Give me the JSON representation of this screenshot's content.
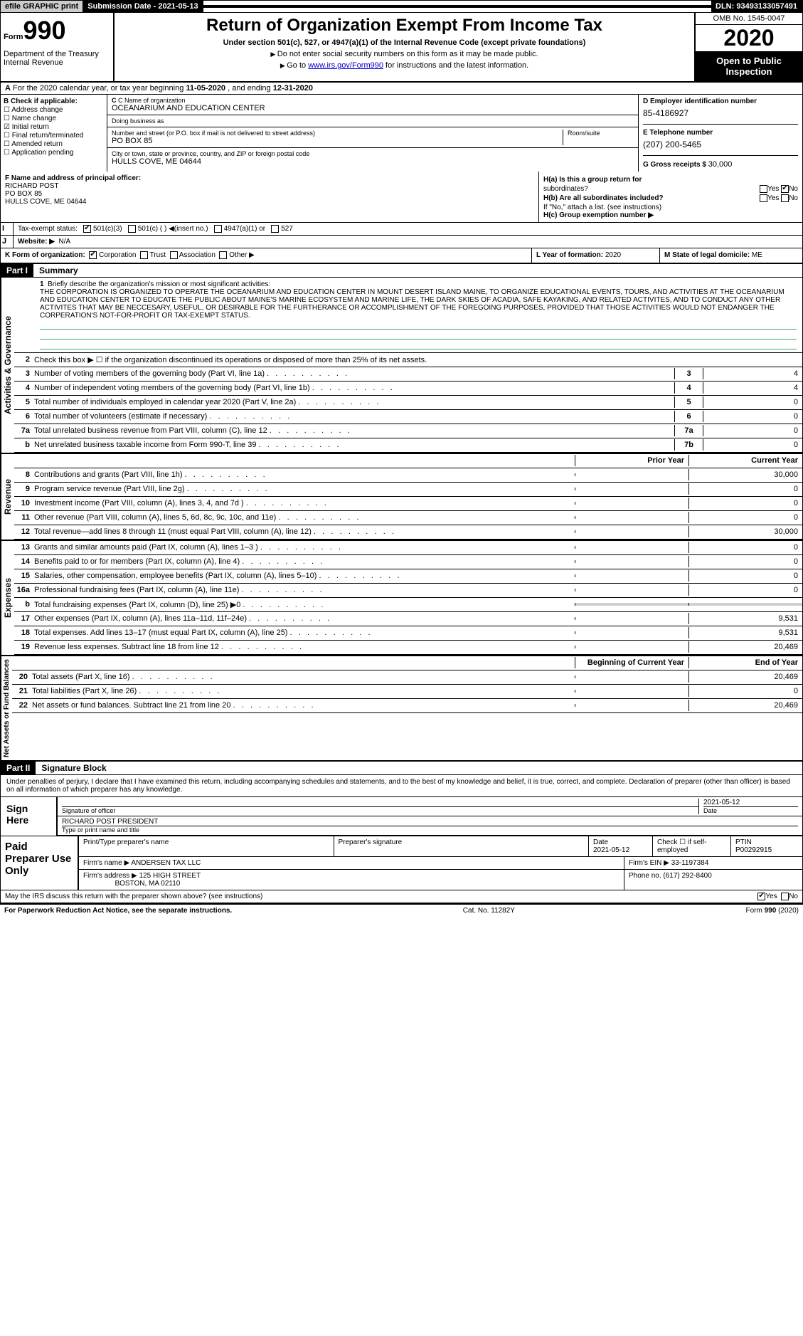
{
  "topbar": {
    "efile": "efile GRAPHIC print",
    "submission_label": "Submission Date - ",
    "submission_date": "2021-05-13",
    "dln_label": "DLN: ",
    "dln": "93493133057491"
  },
  "header": {
    "form_label": "Form",
    "form_number": "990",
    "dept": "Department of the Treasury\nInternal Revenue",
    "title": "Return of Organization Exempt From Income Tax",
    "subtitle": "Under section 501(c), 527, or 4947(a)(1) of the Internal Revenue Code (except private foundations)",
    "note1": "Do not enter social security numbers on this form as it may be made public.",
    "note2_pre": "Go to ",
    "note2_link": "www.irs.gov/Form990",
    "note2_post": " for instructions and the latest information.",
    "omb": "OMB No. 1545-0047",
    "year": "2020",
    "open_public": "Open to Public Inspection"
  },
  "row_a": {
    "prefix": "A",
    "text_pre": "For the 2020 calendar year, or tax year beginning ",
    "begin": "11-05-2020",
    "mid": " , and ending ",
    "end": "12-31-2020"
  },
  "col_b": {
    "label": "B Check if applicable:",
    "items": [
      "Address change",
      "Name change",
      "Initial return",
      "Final return/terminated",
      "Amended return",
      "Application pending"
    ],
    "checked_index": 2
  },
  "col_c": {
    "name_lbl": "C Name of organization",
    "name": "OCEANARIUM AND EDUCATION CENTER",
    "dba_lbl": "Doing business as",
    "dba": "",
    "street_lbl": "Number and street (or P.O. box if mail is not delivered to street address)",
    "room_lbl": "Room/suite",
    "street": "PO BOX 85",
    "city_lbl": "City or town, state or province, country, and ZIP or foreign postal code",
    "city": "HULLS COVE, ME  04644"
  },
  "col_d": {
    "ein_lbl": "D Employer identification number",
    "ein": "85-4186927",
    "phone_lbl": "E Telephone number",
    "phone": "(207) 200-5465",
    "gross_lbl": "G Gross receipts $ ",
    "gross": "30,000"
  },
  "col_f": {
    "lbl": "F  Name and address of principal officer:",
    "name": "RICHARD POST",
    "addr1": "PO BOX 85",
    "addr2": "HULLS COVE, ME  04644"
  },
  "col_h": {
    "ha_lbl": "H(a)  Is this a group return for",
    "ha_lbl2": "subordinates?",
    "ha_yes": "Yes",
    "ha_no": "No",
    "ha_no_checked": true,
    "hb_lbl": "H(b)  Are all subordinates included?",
    "hb_yes": "Yes",
    "hb_no": "No",
    "hb_note": "If \"No,\" attach a list. (see instructions)",
    "hc_lbl": "H(c)  Group exemption number ▶"
  },
  "row_i": {
    "label": "I",
    "text": "Tax-exempt status:",
    "opts": [
      "501(c)(3)",
      "501(c) (  ) ◀(insert no.)",
      "4947(a)(1) or",
      "527"
    ],
    "checked_index": 0
  },
  "row_j": {
    "label": "J",
    "text": "Website: ▶",
    "val": "N/A"
  },
  "row_k": {
    "label": "K Form of organization:",
    "opts": [
      "Corporation",
      "Trust",
      "Association",
      "Other ▶"
    ],
    "checked_index": 0
  },
  "row_l": {
    "label": "L Year of formation: ",
    "val": "2020"
  },
  "row_m": {
    "label": "M State of legal domicile: ",
    "val": "ME"
  },
  "part1": {
    "label": "Part I",
    "title": "Summary",
    "q1_num": "1",
    "q1": "Briefly describe the organization's mission or most significant activities:",
    "mission": "THE CORPORATION IS ORGANIZED TO OPERATE THE OCEANARIUM AND EDUCATION CENTER IN MOUNT DESERT ISLAND MAINE, TO ORGANIZE EDUCATIONAL EVENTS, TOURS, AND ACTIVITIES AT THE OCEANARIUM AND EDUCATION CENTER TO EDUCATE THE PUBLIC ABOUT MAINE'S MARINE ECOSYSTEM AND MARINE LIFE, THE DARK SKIES OF ACADIA, SAFE KAYAKING, AND RELATED ACTIVITES, AND TO CONDUCT ANY OTHER ACTIVITES THAT MAY BE NECCESARY, USEFUL, OR DESIRABLE FOR THE FURTHERANCE OR ACCOMPLISHMENT OF THE FOREGOING PURPOSES, PROVIDED THAT THOSE ACTIVITIES WOULD NOT ENDANGER THE CORPERATION'S NOT-FOR-PROFIT OR TAX-EXEMPT STATUS.",
    "q2": "Check this box ▶ ☐  if the organization discontinued its operations or disposed of more than 25% of its net assets.",
    "vlabel_ag": "Activities & Governance",
    "vlabel_rev": "Revenue",
    "vlabel_exp": "Expenses",
    "vlabel_na": "Net Assets or Fund Balances",
    "lines_ag": [
      {
        "n": "3",
        "t": "Number of voting members of the governing body (Part VI, line 1a)",
        "bn": "3",
        "v": "4"
      },
      {
        "n": "4",
        "t": "Number of independent voting members of the governing body (Part VI, line 1b)",
        "bn": "4",
        "v": "4"
      },
      {
        "n": "5",
        "t": "Total number of individuals employed in calendar year 2020 (Part V, line 2a)",
        "bn": "5",
        "v": "0"
      },
      {
        "n": "6",
        "t": "Total number of volunteers (estimate if necessary)",
        "bn": "6",
        "v": "0"
      },
      {
        "n": "7a",
        "t": "Total unrelated business revenue from Part VIII, column (C), line 12",
        "bn": "7a",
        "v": "0"
      },
      {
        "n": "b",
        "t": "Net unrelated business taxable income from Form 990-T, line 39",
        "bn": "7b",
        "v": "0"
      }
    ],
    "col_prior": "Prior Year",
    "col_current": "Current Year",
    "lines_rev": [
      {
        "n": "8",
        "t": "Contributions and grants (Part VIII, line 1h)",
        "p": "",
        "c": "30,000"
      },
      {
        "n": "9",
        "t": "Program service revenue (Part VIII, line 2g)",
        "p": "",
        "c": "0"
      },
      {
        "n": "10",
        "t": "Investment income (Part VIII, column (A), lines 3, 4, and 7d )",
        "p": "",
        "c": "0"
      },
      {
        "n": "11",
        "t": "Other revenue (Part VIII, column (A), lines 5, 6d, 8c, 9c, 10c, and 11e)",
        "p": "",
        "c": "0"
      },
      {
        "n": "12",
        "t": "Total revenue—add lines 8 through 11 (must equal Part VIII, column (A), line 12)",
        "p": "",
        "c": "30,000"
      }
    ],
    "lines_exp": [
      {
        "n": "13",
        "t": "Grants and similar amounts paid (Part IX, column (A), lines 1–3 )",
        "p": "",
        "c": "0"
      },
      {
        "n": "14",
        "t": "Benefits paid to or for members (Part IX, column (A), line 4)",
        "p": "",
        "c": "0"
      },
      {
        "n": "15",
        "t": "Salaries, other compensation, employee benefits (Part IX, column (A), lines 5–10)",
        "p": "",
        "c": "0"
      },
      {
        "n": "16a",
        "t": "Professional fundraising fees (Part IX, column (A), line 11e)",
        "p": "",
        "c": "0"
      },
      {
        "n": "b",
        "t": "Total fundraising expenses (Part IX, column (D), line 25) ▶0",
        "grey": true
      },
      {
        "n": "17",
        "t": "Other expenses (Part IX, column (A), lines 11a–11d, 11f–24e)",
        "p": "",
        "c": "9,531"
      },
      {
        "n": "18",
        "t": "Total expenses. Add lines 13–17 (must equal Part IX, column (A), line 25)",
        "p": "",
        "c": "9,531"
      },
      {
        "n": "19",
        "t": "Revenue less expenses. Subtract line 18 from line 12",
        "p": "",
        "c": "20,469"
      }
    ],
    "col_begin": "Beginning of Current Year",
    "col_end": "End of Year",
    "lines_na": [
      {
        "n": "20",
        "t": "Total assets (Part X, line 16)",
        "p": "",
        "c": "20,469"
      },
      {
        "n": "21",
        "t": "Total liabilities (Part X, line 26)",
        "p": "",
        "c": "0"
      },
      {
        "n": "22",
        "t": "Net assets or fund balances. Subtract line 21 from line 20",
        "p": "",
        "c": "20,469"
      }
    ]
  },
  "part2": {
    "label": "Part II",
    "title": "Signature Block",
    "intro": "Under penalties of perjury, I declare that I have examined this return, including accompanying schedules and statements, and to the best of my knowledge and belief, it is true, correct, and complete. Declaration of preparer (other than officer) is based on all information of which preparer has any knowledge.",
    "sign_here": "Sign Here",
    "sig_officer_lbl": "Signature of officer",
    "sig_date": "2021-05-12",
    "sig_date_lbl": "Date",
    "sig_name": "RICHARD POST PRESIDENT",
    "sig_name_lbl": "Type or print name and title",
    "paid": "Paid Preparer Use Only",
    "prep_name_lbl": "Print/Type preparer's name",
    "prep_sig_lbl": "Preparer's signature",
    "prep_date_lbl": "Date",
    "prep_date": "2021-05-12",
    "prep_check_lbl": "Check ☐ if self-employed",
    "ptin_lbl": "PTIN",
    "ptin": "P00292915",
    "firm_name_lbl": "Firm's name   ▶ ",
    "firm_name": "ANDERSEN TAX LLC",
    "firm_ein_lbl": "Firm's EIN ▶ ",
    "firm_ein": "33-1197384",
    "firm_addr_lbl": "Firm's address ▶ ",
    "firm_addr": "125 HIGH STREET",
    "firm_city": "BOSTON, MA  02110",
    "firm_phone_lbl": "Phone no. ",
    "firm_phone": "(617) 292-8400",
    "discuss": "May the IRS discuss this return with the preparer shown above? (see instructions)",
    "discuss_yes": "Yes",
    "discuss_no": "No",
    "discuss_yes_checked": true
  },
  "footer": {
    "pra": "For Paperwork Reduction Act Notice, see the separate instructions.",
    "cat": "Cat. No. 11282Y",
    "form": "Form 990 (2020)"
  },
  "colors": {
    "black": "#000000",
    "grey_btn": "#cccccc",
    "grey_cell": "#d0d0d0",
    "underline_green": "#4a6"
  }
}
